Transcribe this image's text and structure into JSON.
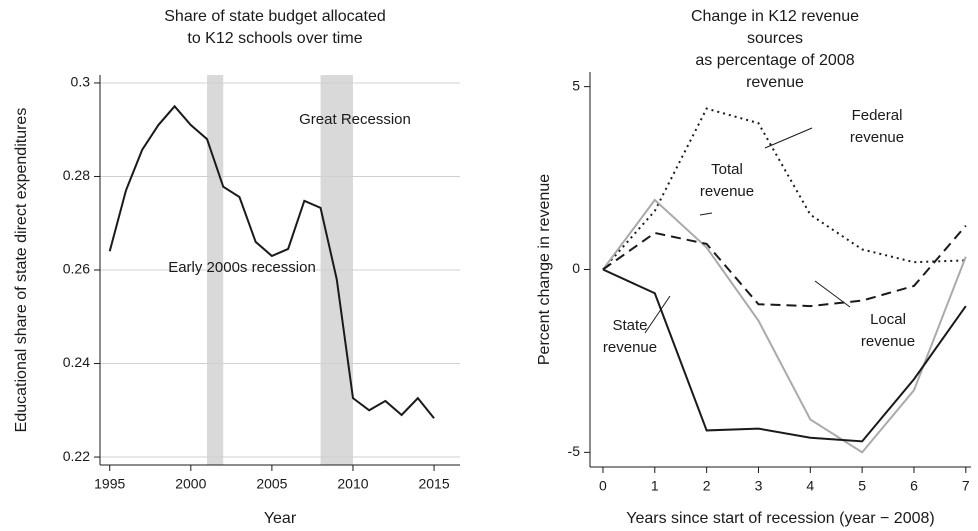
{
  "chart_data": [
    {
      "type": "line",
      "title": "Share of state budget allocated\nto K12 schools over time",
      "xlabel": "Year",
      "ylabel": "Educational share of state direct expenditures",
      "x": [
        1995,
        1996,
        1997,
        1998,
        1999,
        2000,
        2001,
        2002,
        2003,
        2004,
        2005,
        2006,
        2007,
        2008,
        2009,
        2010,
        2011,
        2012,
        2013,
        2014,
        2015
      ],
      "values": [
        0.264,
        0.277,
        0.2857,
        0.291,
        0.295,
        0.291,
        0.288,
        0.2778,
        0.2756,
        0.266,
        0.263,
        0.2645,
        0.2748,
        0.2733,
        0.258,
        0.2326,
        0.23,
        0.232,
        0.229,
        0.2326,
        0.2283
      ],
      "color": "#1a1a1a",
      "xlim": [
        1994.4,
        2016.6
      ],
      "ylim": [
        0.2183,
        0.3017
      ],
      "xticks": [
        1995,
        2000,
        2005,
        2010,
        2015
      ],
      "yticks": [
        0.22,
        0.24,
        0.26,
        0.28,
        0.3
      ],
      "grid": true,
      "shaded": [
        [
          2001,
          2002
        ],
        [
          2008,
          2010
        ]
      ],
      "shade_color": "#d9d9d9",
      "annotations": [
        "Early 2000s recession",
        "Great Recession"
      ]
    },
    {
      "type": "line",
      "title": "Change in K12 revenue sources\nas percentage of 2008 revenue",
      "xlabel": "Years since start of recession (year − 2008)",
      "ylabel": "Percent change in revenue",
      "x": [
        0,
        1,
        2,
        3,
        4,
        5,
        6,
        7
      ],
      "series": [
        {
          "name": "Federal revenue",
          "color": "#1a1a1a",
          "style": "dotted",
          "values": [
            0,
            1.6,
            4.4,
            4.0,
            1.5,
            0.55,
            0.2,
            0.25
          ]
        },
        {
          "name": "Total\nrevenue",
          "color": "#aaaaaa",
          "style": "solid",
          "values": [
            0,
            1.9,
            0.6,
            -1.4,
            -4.1,
            -5.0,
            -3.3,
            0.35
          ]
        },
        {
          "name": "Local\nrevenue",
          "color": "#1a1a1a",
          "style": "dashed",
          "values": [
            0,
            1.0,
            0.7,
            -0.95,
            -1.0,
            -0.85,
            -0.45,
            1.2
          ]
        },
        {
          "name": "State\nrevenue",
          "color": "#1a1a1a",
          "style": "solid",
          "values": [
            0,
            -0.65,
            -4.4,
            -4.35,
            -4.6,
            -4.7,
            -3.0,
            -1.0
          ]
        }
      ],
      "xlim": [
        -0.25,
        7.1
      ],
      "ylim": [
        -5.4,
        5.4
      ],
      "xticks": [
        0,
        1,
        2,
        3,
        4,
        5,
        6,
        7
      ],
      "yticks": [
        -5,
        0,
        5
      ],
      "grid": false
    }
  ]
}
